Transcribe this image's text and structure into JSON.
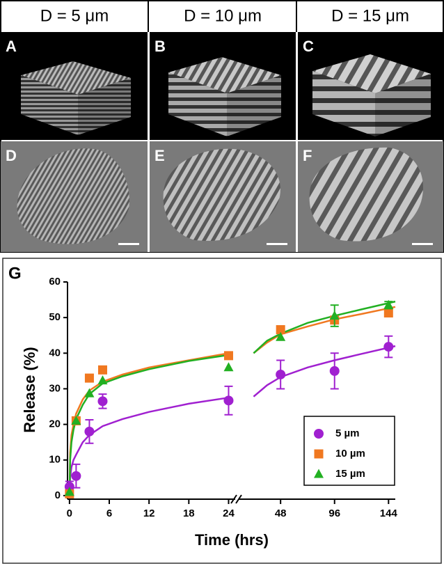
{
  "panels": {
    "headers": [
      "D = 5 μm",
      "D = 10 μm",
      "D = 15 μm"
    ],
    "labels": [
      "A",
      "B",
      "C",
      "D",
      "E",
      "F"
    ]
  },
  "chart_data": {
    "type": "scatter",
    "panel_label": "G",
    "xlabel": "Time (hrs)",
    "ylabel": "Release (%)",
    "ylim": [
      -1,
      60
    ],
    "yticks": [
      0,
      10,
      20,
      30,
      40,
      50,
      60
    ],
    "x_segments": [
      {
        "xlim": [
          -0.3,
          25
        ],
        "xticks": [
          0,
          6,
          12,
          18,
          24
        ]
      },
      {
        "xlim": [
          12,
          150
        ],
        "xticks": [
          48,
          96,
          144
        ]
      }
    ],
    "x": [
      0,
      1,
      3,
      5,
      24,
      48,
      96,
      144
    ],
    "fit_x": [
      0,
      0.1,
      0.3,
      0.6,
      1,
      2,
      3,
      5,
      8,
      12,
      18,
      24,
      null,
      24,
      36,
      48,
      72,
      96,
      120,
      150
    ],
    "legend": "lower right",
    "series": [
      {
        "name": "5 µm",
        "color": "#a020d0",
        "marker": "circle",
        "values": [
          2.5,
          5.5,
          18,
          26.5,
          26.7,
          34,
          35,
          41.8
        ],
        "errors": [
          1.5,
          3.3,
          3.3,
          2,
          4,
          4,
          5,
          3
        ],
        "fit": [
          0,
          5,
          8,
          10,
          11.5,
          15,
          17,
          19.5,
          21.5,
          23.5,
          25.8,
          27.5,
          null,
          27.8,
          31,
          33.3,
          36,
          38,
          39.8,
          42
        ]
      },
      {
        "name": "10 µm",
        "color": "#f07820",
        "marker": "square",
        "values": [
          0.5,
          21,
          33,
          35.3,
          39.3,
          46.6,
          49.3,
          51.3
        ],
        "errors": [
          null,
          null,
          null,
          null,
          null,
          null,
          null,
          null
        ],
        "fit": [
          0,
          12,
          17,
          20,
          23,
          27,
          29.5,
          32,
          34,
          36,
          38,
          40,
          null,
          40,
          43,
          45.3,
          47.5,
          49.5,
          51,
          53
        ]
      },
      {
        "name": "15 µm",
        "color": "#22b022",
        "marker": "triangle",
        "values": [
          1,
          21,
          28.7,
          32.3,
          36,
          44.5,
          50.5,
          53.5
        ],
        "errors": [
          null,
          null,
          null,
          null,
          null,
          null,
          3,
          1
        ],
        "fit": [
          0,
          10,
          15,
          18.5,
          21.5,
          25.5,
          28.5,
          31.5,
          33.5,
          35.5,
          37.8,
          39.5,
          null,
          40,
          43.5,
          45.5,
          48.5,
          50.5,
          52.3,
          54.5
        ]
      }
    ]
  }
}
